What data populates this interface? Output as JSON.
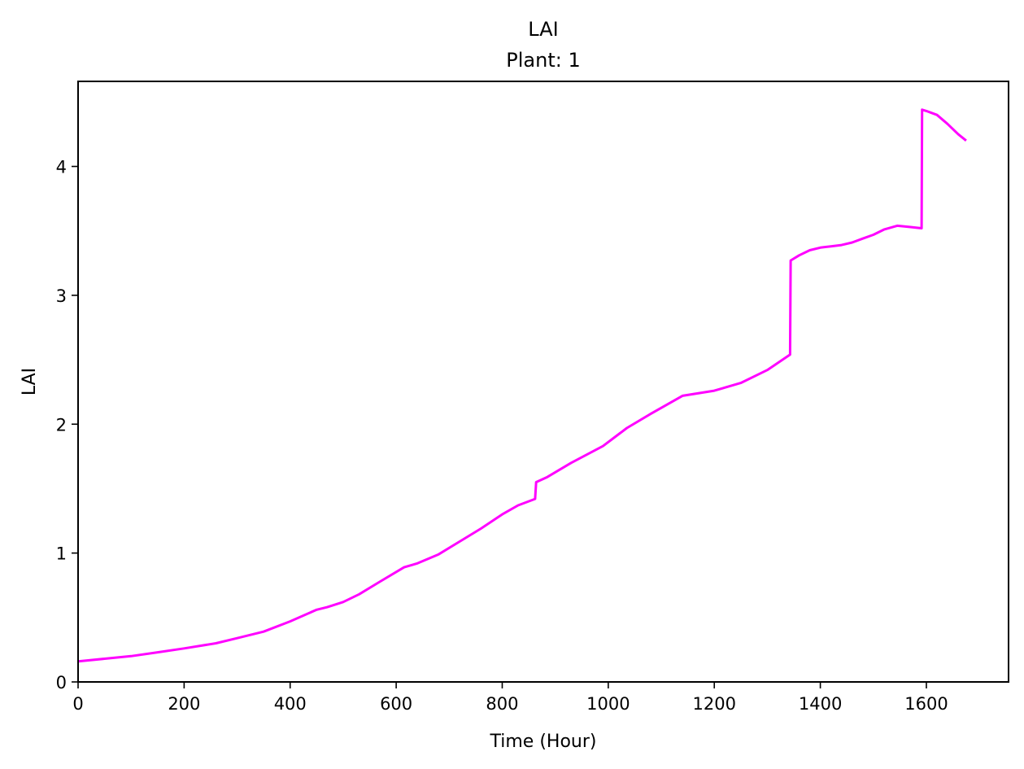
{
  "chart_data": {
    "type": "line",
    "title": "LAI",
    "subtitle": "Plant: 1",
    "xlabel": "Time (Hour)",
    "ylabel": "LAI",
    "xlim": [
      0,
      1755
    ],
    "ylim": [
      0,
      4.66
    ],
    "xticks": [
      0,
      200,
      400,
      600,
      800,
      1000,
      1200,
      1400,
      1600
    ],
    "yticks": [
      0,
      1,
      2,
      3,
      4
    ],
    "grid": false,
    "series": [
      {
        "color": "#ff00ff",
        "x": [
          0,
          50,
          100,
          150,
          200,
          260,
          300,
          350,
          400,
          450,
          470,
          500,
          530,
          570,
          615,
          640,
          680,
          720,
          760,
          800,
          830,
          862,
          864,
          885,
          930,
          990,
          1035,
          1080,
          1140,
          1200,
          1250,
          1300,
          1343,
          1344,
          1360,
          1380,
          1400,
          1420,
          1440,
          1460,
          1480,
          1500,
          1520,
          1545,
          1570,
          1591,
          1592,
          1600,
          1620,
          1640,
          1660,
          1675
        ],
        "y": [
          0.16,
          0.18,
          0.2,
          0.23,
          0.26,
          0.3,
          0.34,
          0.39,
          0.47,
          0.56,
          0.58,
          0.62,
          0.68,
          0.78,
          0.89,
          0.92,
          0.99,
          1.09,
          1.19,
          1.3,
          1.37,
          1.42,
          1.55,
          1.59,
          1.7,
          1.83,
          1.97,
          2.08,
          2.22,
          2.26,
          2.32,
          2.42,
          2.54,
          3.27,
          3.31,
          3.35,
          3.37,
          3.38,
          3.39,
          3.41,
          3.44,
          3.47,
          3.51,
          3.54,
          3.53,
          3.52,
          4.44,
          4.43,
          4.4,
          4.33,
          4.25,
          4.2
        ]
      }
    ]
  }
}
